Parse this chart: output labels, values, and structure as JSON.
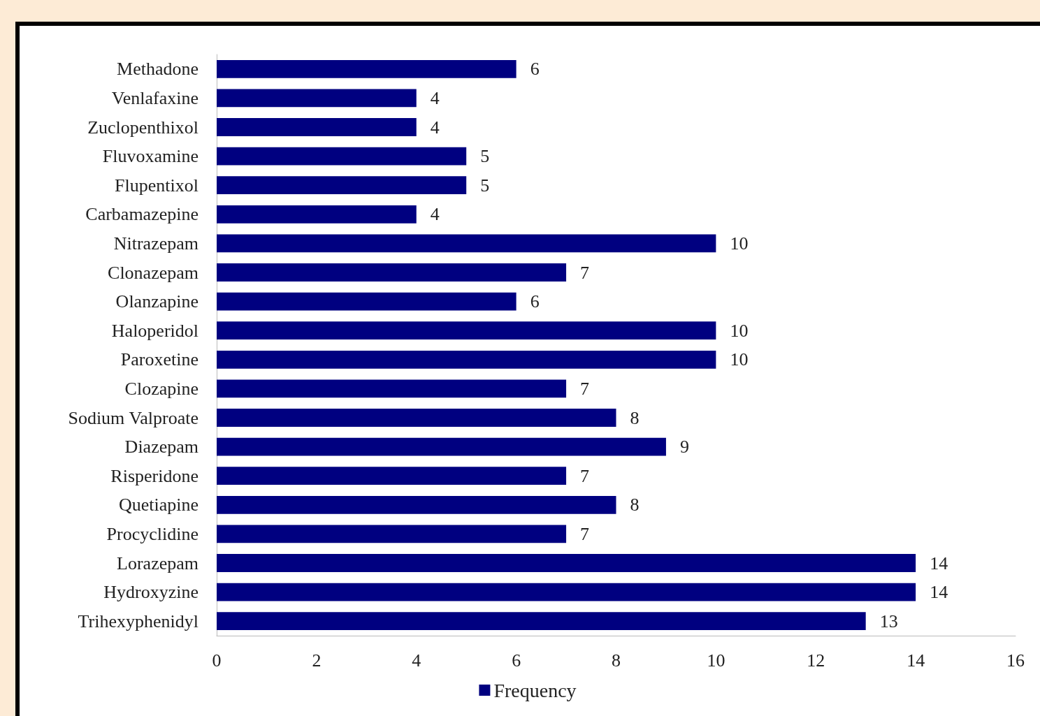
{
  "chart_data": {
    "type": "bar",
    "orientation": "horizontal",
    "categories": [
      "Methadone",
      "Venlafaxine",
      "Zuclopenthixol",
      "Fluvoxamine",
      "Flupentixol",
      "Carbamazepine",
      "Nitrazepam",
      "Clonazepam",
      "Olanzapine",
      "Haloperidol",
      "Paroxetine",
      "Clozapine",
      "Sodium Valproate",
      "Diazepam",
      "Risperidone",
      "Quetiapine",
      "Procyclidine",
      "Lorazepam",
      "Hydroxyzine",
      "Trihexyphenidyl"
    ],
    "series": [
      {
        "name": "Frequency",
        "color": "#000080",
        "values": [
          6,
          4,
          4,
          5,
          5,
          4,
          10,
          7,
          6,
          10,
          10,
          7,
          8,
          9,
          7,
          8,
          7,
          14,
          14,
          13
        ]
      }
    ],
    "xlim": [
      0,
      16
    ],
    "xticks": [
      0,
      2,
      4,
      6,
      8,
      10,
      12,
      14,
      16
    ],
    "grid": false,
    "legend": "bottom",
    "data_labels": true
  }
}
